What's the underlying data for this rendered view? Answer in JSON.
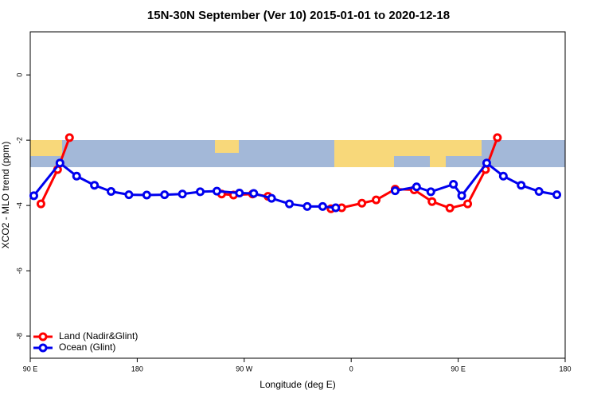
{
  "chart_data": {
    "type": "line",
    "title": "15N-30N September (Ver 10)   2015-01-01 to 2020-12-18",
    "x_label": "Longitude (deg E)",
    "y_label": "XCO2 - MLO trend (ppm)",
    "xlim": [
      90,
      540
    ],
    "xticks": [
      {
        "value": 90,
        "label": "90 E"
      },
      180,
      {
        "value": 270,
        "label": "90 W"
      },
      {
        "value": 360,
        "label": "0"
      },
      {
        "value": 450,
        "label": "90 E"
      },
      {
        "value": 540,
        "label": "180"
      }
    ],
    "ylim": [
      -8.68,
      1.32
    ],
    "yticks": [
      0,
      -2,
      -4,
      -6,
      -8
    ],
    "legend": "bottom-left",
    "series": [
      {
        "name": "Land (Nadir&Glint)",
        "color": "#ff0000",
        "x": [
          99,
          113,
          123,
          null,
          251,
          261,
          277,
          290,
          null,
          343,
          352,
          369,
          381,
          397,
          413,
          428,
          443,
          458,
          473,
          483
        ],
        "values": [
          -3.95,
          -2.9,
          -1.92,
          null,
          -3.65,
          -3.68,
          -3.65,
          -3.72,
          null,
          -4.1,
          -4.07,
          -3.93,
          -3.83,
          -3.5,
          -3.52,
          -3.88,
          -4.08,
          -3.95,
          -2.9,
          -1.92
        ]
      },
      {
        "name": "Ocean (Glint)",
        "color": "#0000ee",
        "x": [
          93,
          115,
          129,
          144,
          158,
          173,
          188,
          203,
          218,
          233,
          247,
          266,
          278,
          293,
          308,
          323,
          336,
          347,
          null,
          397,
          415,
          427,
          446,
          453,
          474,
          488,
          503,
          518,
          533
        ],
        "values": [
          -3.7,
          -2.7,
          -3.1,
          -3.38,
          -3.57,
          -3.67,
          -3.68,
          -3.67,
          -3.65,
          -3.58,
          -3.56,
          -3.62,
          -3.63,
          -3.78,
          -3.95,
          -4.03,
          -4.03,
          -4.07,
          null,
          -3.55,
          -3.43,
          -3.58,
          -3.35,
          -3.7,
          -2.7,
          -3.1,
          -3.38,
          -3.57,
          -3.67
        ]
      }
    ]
  }
}
